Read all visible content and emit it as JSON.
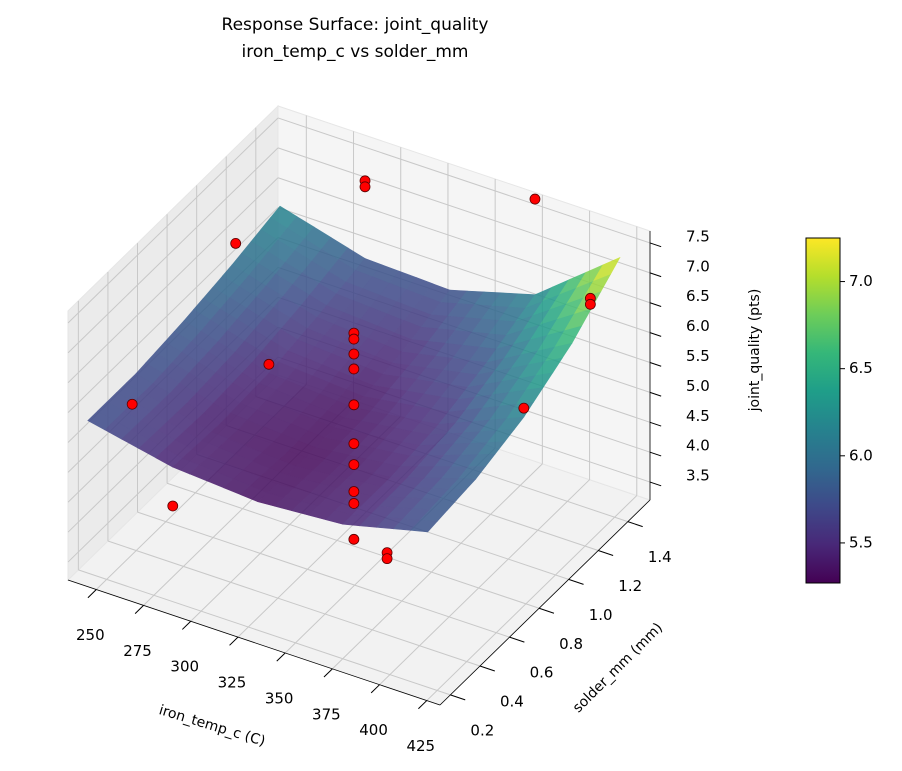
{
  "chart_data": {
    "type": "surface3d",
    "title": "Response Surface: joint_quality",
    "subtitle": "iron_temp_c vs solder_mm",
    "x_label": "iron_temp_c (C)",
    "y_label": "solder_mm (mm)",
    "z_label": "joint_quality (pts)",
    "xlim": [
      235,
      432
    ],
    "ylim": [
      0.13,
      1.55
    ],
    "zlim": [
      3.2,
      7.7
    ],
    "xticks": [
      250,
      275,
      300,
      325,
      350,
      375,
      400,
      425
    ],
    "yticks": [
      0.2,
      0.4,
      0.6,
      0.8,
      {
        "value": 1.0,
        "label": "1.0"
      },
      1.2,
      1.4
    ],
    "zticks": [
      3.5,
      {
        "value": 4.0,
        "label": "4.0"
      },
      4.5,
      {
        "value": 5.0,
        "label": "5.0"
      },
      5.5,
      {
        "value": 6.0,
        "label": "6.0"
      },
      6.5,
      {
        "value": 7.0,
        "label": "7.0"
      },
      7.5
    ],
    "grid": true,
    "colormap": "viridis",
    "surface": {
      "x": [
        240,
        285,
        330,
        375,
        420
      ],
      "y": [
        0.2,
        0.525,
        0.85,
        1.175,
        1.5
      ],
      "z": [
        [
          5.75,
          5.45,
          5.35,
          5.45,
          5.8
        ],
        [
          5.75,
          5.4,
          5.3,
          5.45,
          5.9
        ],
        [
          5.85,
          5.45,
          5.35,
          5.55,
          6.15
        ],
        [
          6.0,
          5.6,
          5.5,
          5.8,
          6.6
        ],
        [
          6.2,
          5.8,
          5.75,
          6.15,
          7.25
        ]
      ]
    },
    "colorbar": {
      "lim": [
        5.27,
        7.25
      ],
      "ticks": [
        5.5,
        {
          "value": 6.0,
          "label": "6.0"
        },
        6.5,
        {
          "value": 7.0,
          "label": "7.0"
        }
      ]
    },
    "points": {
      "color": "#ff0000",
      "x": [
        330,
        330,
        330,
        330,
        330,
        330,
        330,
        330,
        330,
        330,
        285,
        285,
        375,
        420,
        420,
        420,
        240,
        285,
        240,
        285,
        375,
        375
      ],
      "y": [
        0.85,
        0.85,
        0.85,
        0.85,
        0.85,
        0.85,
        0.85,
        0.85,
        0.85,
        0.85,
        1.5,
        1.5,
        1.5,
        1.3,
        1.3,
        0.85,
        1.2,
        0.85,
        0.5,
        0.2,
        0.5,
        0.5
      ],
      "z": [
        6.6,
        6.5,
        6.25,
        6.0,
        5.4,
        4.75,
        4.4,
        3.95,
        3.75,
        3.15,
        7.1,
        7.0,
        7.75,
        7.05,
        6.95,
        6.3,
        6.3,
        5.6,
        5.3,
        4.8,
        4.25,
        4.15
      ]
    }
  }
}
